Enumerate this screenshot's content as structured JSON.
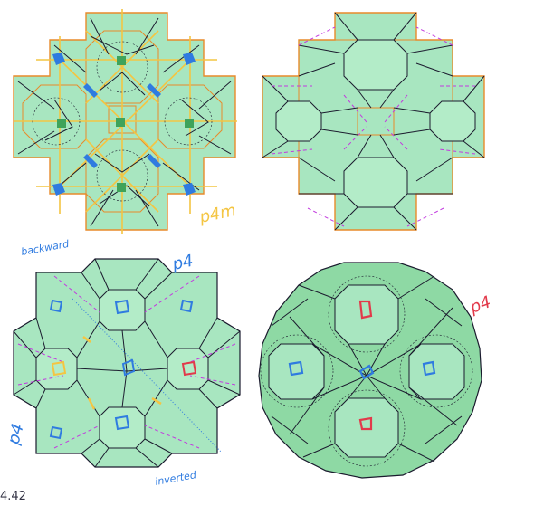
{
  "figure_number": "4.42",
  "annotations": {
    "p4m_label": "p4m",
    "p4_label_top": "p4",
    "p4_label_right": "p4",
    "p4_label_left": "p4",
    "handwritten_top_left": "backward",
    "handwritten_bottom": "inverted"
  },
  "colors": {
    "tile_fill": "#a8e6c0",
    "tile_edge_orange": "#e88a2a",
    "crease_black": "#1b1b2e",
    "crease_magenta": "#c23adf",
    "symmetry_yellow": "#f4c542",
    "rotation_blue": "#2f7be0",
    "rotation_green": "#3fa35a",
    "rotation_red": "#e2394a",
    "folded_fill": "#8ed9a4"
  },
  "panels": [
    {
      "id": "crease-pattern-symmetry"
    },
    {
      "id": "crease-pattern-tiles"
    },
    {
      "id": "crease-pattern-octagon"
    },
    {
      "id": "folded-form"
    }
  ]
}
